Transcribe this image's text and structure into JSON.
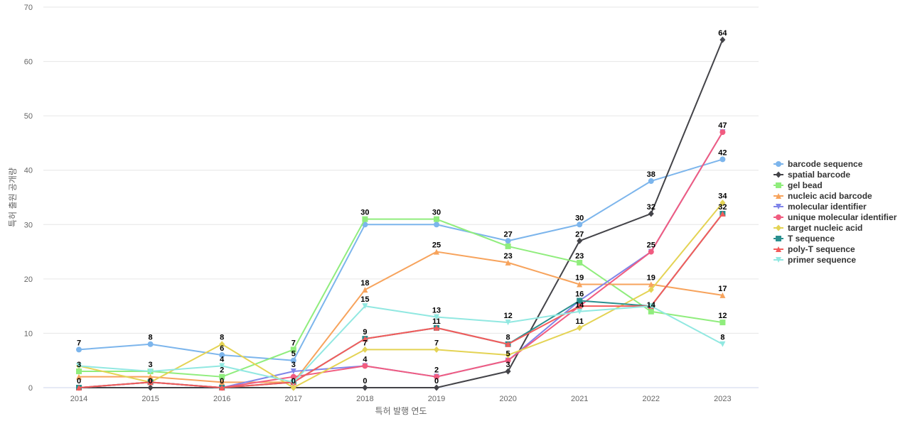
{
  "chart_data": {
    "type": "line",
    "title": "",
    "xlabel": "특허 발행 연도",
    "ylabel": "특허 출원 공개량",
    "ylim": [
      0,
      70
    ],
    "yticks": [
      0,
      10,
      20,
      30,
      40,
      50,
      60,
      70
    ],
    "categories": [
      "2014",
      "2015",
      "2016",
      "2017",
      "2018",
      "2019",
      "2020",
      "2021",
      "2022",
      "2023"
    ],
    "grid": true,
    "legend_position": "right",
    "series": [
      {
        "name": "barcode sequence",
        "color": "#7cb5ec",
        "marker": "circle",
        "values": [
          7,
          8,
          6,
          5,
          30,
          30,
          27,
          30,
          38,
          42
        ]
      },
      {
        "name": "spatial barcode",
        "color": "#434348",
        "marker": "diamond",
        "values": [
          0,
          0,
          0,
          0,
          0,
          0,
          3,
          27,
          32,
          64
        ]
      },
      {
        "name": "gel bead",
        "color": "#90ed7d",
        "marker": "square",
        "values": [
          3,
          3,
          2,
          7,
          31,
          31,
          26,
          23,
          14,
          12
        ]
      },
      {
        "name": "nucleic acid barcode",
        "color": "#f7a35c",
        "marker": "triangle",
        "values": [
          2,
          2,
          1,
          1,
          18,
          25,
          23,
          19,
          19,
          17
        ]
      },
      {
        "name": "molecular identifier",
        "color": "#8085e9",
        "marker": "triangle-down",
        "values": [
          0,
          1,
          0,
          3,
          4,
          2,
          5,
          16,
          25,
          47
        ]
      },
      {
        "name": "unique molecular identifier",
        "color": "#f15c80",
        "marker": "circle",
        "values": [
          0,
          1,
          0,
          2,
          4,
          2,
          5,
          15,
          25,
          47
        ]
      },
      {
        "name": "target nucleic acid",
        "color": "#e4d354",
        "marker": "diamond",
        "values": [
          4,
          1,
          8,
          0,
          7,
          7,
          6,
          11,
          18,
          34
        ]
      },
      {
        "name": "T sequence",
        "color": "#2b908f",
        "marker": "square",
        "values": [
          0,
          1,
          0,
          1,
          9,
          11,
          8,
          16,
          15,
          32
        ]
      },
      {
        "name": "poly-T sequence",
        "color": "#f45b5b",
        "marker": "triangle",
        "values": [
          0,
          1,
          0,
          1,
          9,
          11,
          8,
          15,
          15,
          32
        ]
      },
      {
        "name": "primer sequence",
        "color": "#91e8e1",
        "marker": "triangle-down",
        "values": [
          4,
          3,
          4,
          1,
          15,
          13,
          12,
          14,
          15,
          8
        ]
      }
    ],
    "data_labels": [
      {
        "x": "2014",
        "text": "7",
        "value": 7
      },
      {
        "x": "2014",
        "text": "3",
        "value": 3
      },
      {
        "x": "2014",
        "text": "0",
        "value": 0
      },
      {
        "x": "2015",
        "text": "8",
        "value": 8
      },
      {
        "x": "2015",
        "text": "3",
        "value": 3
      },
      {
        "x": "2015",
        "text": "0",
        "value": 0
      },
      {
        "x": "2016",
        "text": "8",
        "value": 8
      },
      {
        "x": "2016",
        "text": "6",
        "value": 6
      },
      {
        "x": "2016",
        "text": "4",
        "value": 4
      },
      {
        "x": "2016",
        "text": "2",
        "value": 2
      },
      {
        "x": "2016",
        "text": "0",
        "value": 0
      },
      {
        "x": "2017",
        "text": "7",
        "value": 7
      },
      {
        "x": "2017",
        "text": "5",
        "value": 5
      },
      {
        "x": "2017",
        "text": "3",
        "value": 3
      },
      {
        "x": "2017",
        "text": "0",
        "value": 0
      },
      {
        "x": "2018",
        "text": "30",
        "value": 31
      },
      {
        "x": "2018",
        "text": "18",
        "value": 18
      },
      {
        "x": "2018",
        "text": "15",
        "value": 15
      },
      {
        "x": "2018",
        "text": "9",
        "value": 9
      },
      {
        "x": "2018",
        "text": "7",
        "value": 7
      },
      {
        "x": "2018",
        "text": "4",
        "value": 4
      },
      {
        "x": "2018",
        "text": "0",
        "value": 0
      },
      {
        "x": "2019",
        "text": "30",
        "value": 31
      },
      {
        "x": "2019",
        "text": "25",
        "value": 25
      },
      {
        "x": "2019",
        "text": "13",
        "value": 13
      },
      {
        "x": "2019",
        "text": "11",
        "value": 11
      },
      {
        "x": "2019",
        "text": "7",
        "value": 7
      },
      {
        "x": "2019",
        "text": "2",
        "value": 2
      },
      {
        "x": "2019",
        "text": "0",
        "value": 0
      },
      {
        "x": "2020",
        "text": "27",
        "value": 27
      },
      {
        "x": "2020",
        "text": "23",
        "value": 23
      },
      {
        "x": "2020",
        "text": "12",
        "value": 12
      },
      {
        "x": "2020",
        "text": "8",
        "value": 8
      },
      {
        "x": "2020",
        "text": "5",
        "value": 5
      },
      {
        "x": "2020",
        "text": "3",
        "value": 3
      },
      {
        "x": "2021",
        "text": "30",
        "value": 30
      },
      {
        "x": "2021",
        "text": "27",
        "value": 27
      },
      {
        "x": "2021",
        "text": "23",
        "value": 23
      },
      {
        "x": "2021",
        "text": "19",
        "value": 19
      },
      {
        "x": "2021",
        "text": "16",
        "value": 16
      },
      {
        "x": "2021",
        "text": "14",
        "value": 14
      },
      {
        "x": "2021",
        "text": "11",
        "value": 11
      },
      {
        "x": "2022",
        "text": "38",
        "value": 38
      },
      {
        "x": "2022",
        "text": "32",
        "value": 32
      },
      {
        "x": "2022",
        "text": "25",
        "value": 25
      },
      {
        "x": "2022",
        "text": "19",
        "value": 19
      },
      {
        "x": "2022",
        "text": "14",
        "value": 14
      },
      {
        "x": "2023",
        "text": "64",
        "value": 64
      },
      {
        "x": "2023",
        "text": "47",
        "value": 47
      },
      {
        "x": "2023",
        "text": "42",
        "value": 42
      },
      {
        "x": "2023",
        "text": "34",
        "value": 34
      },
      {
        "x": "2023",
        "text": "32",
        "value": 32
      },
      {
        "x": "2023",
        "text": "17",
        "value": 17
      },
      {
        "x": "2023",
        "text": "12",
        "value": 12
      },
      {
        "x": "2023",
        "text": "8",
        "value": 8
      }
    ]
  }
}
